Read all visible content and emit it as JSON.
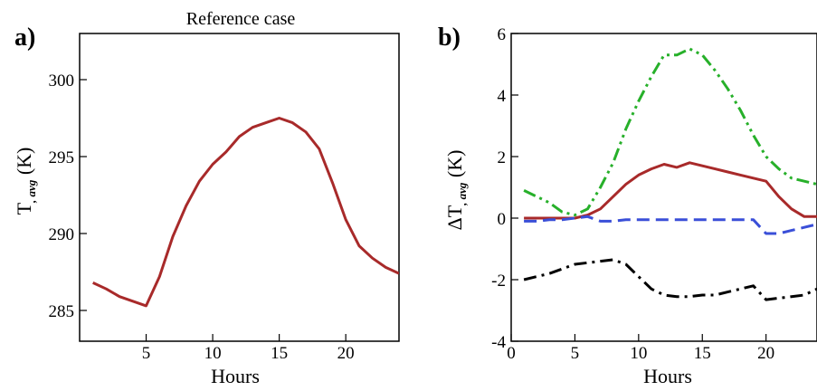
{
  "chart_data": [
    {
      "type": "line",
      "panel_label": "a)",
      "title": "Reference case",
      "xlabel": "Hours",
      "ylabel": "T, avg (K)",
      "ylabel_main": "T",
      "ylabel_sub": ", avg",
      "ylabel_unit": " (K)",
      "xlim": [
        0,
        24
      ],
      "ylim": [
        283,
        303
      ],
      "xticks": [
        5,
        10,
        15,
        20
      ],
      "yticks": [
        285,
        290,
        295,
        300
      ],
      "series": [
        {
          "color": "#a82a2a",
          "dash": "solid",
          "x": [
            1,
            2,
            3,
            4,
            5,
            6,
            7,
            8,
            9,
            10,
            11,
            12,
            13,
            14,
            15,
            16,
            17,
            18,
            19,
            20,
            21,
            22,
            23,
            24
          ],
          "y": [
            286.8,
            286.4,
            285.9,
            285.6,
            285.3,
            287.2,
            289.8,
            291.8,
            293.4,
            294.5,
            295.3,
            296.3,
            296.9,
            297.2,
            297.5,
            297.2,
            296.6,
            295.5,
            293.3,
            290.9,
            289.2,
            288.4,
            287.8,
            287.4
          ]
        }
      ]
    },
    {
      "type": "line",
      "panel_label": "b)",
      "title": "",
      "xlabel": "Hours",
      "ylabel": "ΔT, avg (K)",
      "ylabel_main": "ΔT",
      "ylabel_sub": ", avg",
      "ylabel_unit": " (K)",
      "xlim": [
        0,
        24
      ],
      "ylim": [
        -4,
        6
      ],
      "xticks": [
        0,
        5,
        10,
        15,
        20
      ],
      "yticks": [
        -4,
        -2,
        0,
        2,
        4,
        6
      ],
      "series": [
        {
          "color": "#27b02a",
          "dash": "dashdotdot",
          "x": [
            1,
            2,
            3,
            4,
            5,
            6,
            7,
            8,
            9,
            10,
            11,
            12,
            13,
            14,
            15,
            16,
            17,
            18,
            19,
            20,
            21,
            22,
            23,
            24
          ],
          "y": [
            0.9,
            0.7,
            0.5,
            0.2,
            0.1,
            0.3,
            1.0,
            1.8,
            2.9,
            3.8,
            4.6,
            5.3,
            5.3,
            5.5,
            5.3,
            4.8,
            4.2,
            3.5,
            2.7,
            2.0,
            1.6,
            1.3,
            1.2,
            1.1
          ]
        },
        {
          "color": "#a82a2a",
          "dash": "solid",
          "x": [
            1,
            2,
            3,
            4,
            5,
            6,
            7,
            8,
            9,
            10,
            11,
            12,
            13,
            14,
            15,
            16,
            17,
            18,
            19,
            20,
            21,
            22,
            23,
            24
          ],
          "y": [
            0.0,
            0.0,
            0.0,
            0.0,
            0.0,
            0.1,
            0.3,
            0.7,
            1.1,
            1.4,
            1.6,
            1.75,
            1.65,
            1.8,
            1.7,
            1.6,
            1.5,
            1.4,
            1.3,
            1.2,
            0.7,
            0.3,
            0.05,
            0.05
          ]
        },
        {
          "color": "#3a4fd8",
          "dash": "dashed",
          "x": [
            1,
            2,
            3,
            4,
            5,
            6,
            7,
            8,
            9,
            10,
            11,
            12,
            13,
            14,
            15,
            16,
            17,
            18,
            19,
            20,
            21,
            22,
            23,
            24
          ],
          "y": [
            -0.1,
            -0.1,
            -0.05,
            -0.05,
            0.0,
            0.05,
            -0.1,
            -0.1,
            -0.05,
            -0.05,
            -0.05,
            -0.05,
            -0.05,
            -0.05,
            -0.05,
            -0.05,
            -0.05,
            -0.05,
            -0.05,
            -0.5,
            -0.5,
            -0.4,
            -0.3,
            -0.2
          ]
        },
        {
          "color": "#000000",
          "dash": "dashdot",
          "x": [
            1,
            2,
            3,
            4,
            5,
            6,
            7,
            8,
            9,
            10,
            11,
            12,
            13,
            14,
            15,
            16,
            17,
            18,
            19,
            20,
            21,
            22,
            23,
            24
          ],
          "y": [
            -2.0,
            -1.9,
            -1.8,
            -1.65,
            -1.5,
            -1.45,
            -1.4,
            -1.35,
            -1.5,
            -1.9,
            -2.3,
            -2.5,
            -2.55,
            -2.55,
            -2.5,
            -2.5,
            -2.4,
            -2.3,
            -2.2,
            -2.65,
            -2.6,
            -2.55,
            -2.5,
            -2.3
          ]
        }
      ]
    }
  ]
}
